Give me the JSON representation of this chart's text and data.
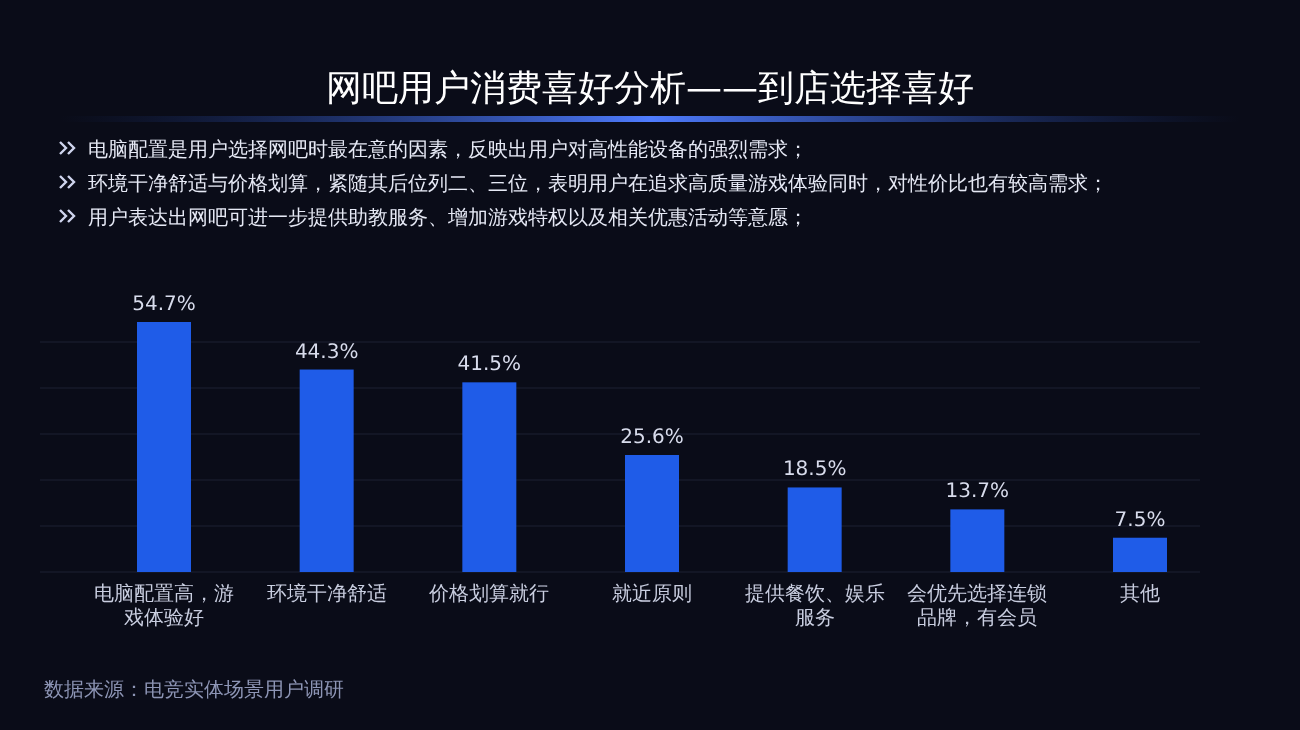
{
  "chart_data": {
    "type": "bar",
    "title": "网吧用户消费喜好分析——到店选择喜好",
    "annotations": [
      "电脑配置是用户选择网吧时最在意的因素，反映出用户对高性能设备的强烈需求；",
      "环境干净舒适与价格划算，紧随其后位列二、三位，表明用户在追求高质量游戏体验同时，对性价比也有较高需求；",
      "用户表达出网吧可进一步提供助教服务、增加游戏特权以及相关优惠活动等意愿；",
      "数据来源：电竞实体场景用户调研"
    ],
    "categories": [
      "电脑配置高，游戏体验好",
      "环境干净舒适",
      "价格划算就行",
      "就近原则",
      "提供餐饮、娱乐服务",
      "会优先选择连锁品牌，有会员",
      "其他"
    ],
    "values": [
      54.7,
      44.3,
      41.5,
      25.6,
      18.5,
      13.7,
      7.5
    ],
    "value_labels": [
      "54.7%",
      "44.3%",
      "41.5%",
      "25.6%",
      "18.5%",
      "13.7%",
      "7.5%"
    ],
    "color": "#1f5ce8"
  }
}
